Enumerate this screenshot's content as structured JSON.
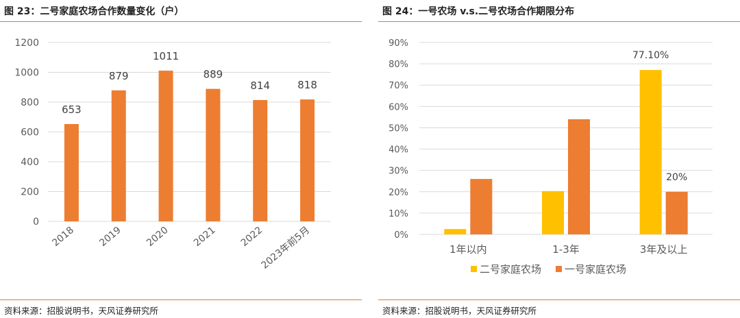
{
  "figures": [
    {
      "title": "图 23：二号家庭农场合作数量变化（户）",
      "source": "资料来源：招股说明书，天风证券研究所"
    },
    {
      "title": "图 24：一号农场 v.s.二号农场合作期限分布",
      "source": "资料来源：招股说明书，天风证券研究所"
    }
  ],
  "colors": {
    "orange": "#ED7D31",
    "yellow": "#FFC000",
    "rule": "#E07B2E",
    "grid": "#D9D9D9"
  },
  "chart_data": [
    {
      "type": "bar",
      "categories": [
        "2018",
        "2019",
        "2020",
        "2021",
        "2022",
        "2023年前5月"
      ],
      "values": [
        653,
        879,
        1011,
        889,
        814,
        818
      ],
      "data_labels": [
        "653",
        "879",
        "1011",
        "889",
        "814",
        "818"
      ],
      "ylim": [
        0,
        1200
      ],
      "yticks": [
        0,
        200,
        400,
        600,
        800,
        1000,
        1200
      ],
      "ytick_labels": [
        "0",
        "200",
        "400",
        "600",
        "800",
        "1000",
        "1200"
      ],
      "grid": true,
      "xtick_rotation": "diagonal"
    },
    {
      "type": "bar",
      "categories": [
        "1年以内",
        "1-3年",
        "3年及以上"
      ],
      "series": [
        {
          "name": "二号家庭农场",
          "values": [
            2.5,
            20.3,
            77.1
          ],
          "data_labels": [
            "",
            "",
            "77.10%"
          ]
        },
        {
          "name": "一号家庭农场",
          "values": [
            26,
            54,
            20
          ],
          "data_labels": [
            "",
            "",
            "20%"
          ]
        }
      ],
      "ylim": [
        0,
        90
      ],
      "yticks": [
        0,
        10,
        20,
        30,
        40,
        50,
        60,
        70,
        80,
        90
      ],
      "ytick_labels": [
        "0%",
        "10%",
        "20%",
        "30%",
        "40%",
        "50%",
        "60%",
        "70%",
        "80%",
        "90%"
      ],
      "grid": true,
      "legend_position": "bottom"
    }
  ]
}
